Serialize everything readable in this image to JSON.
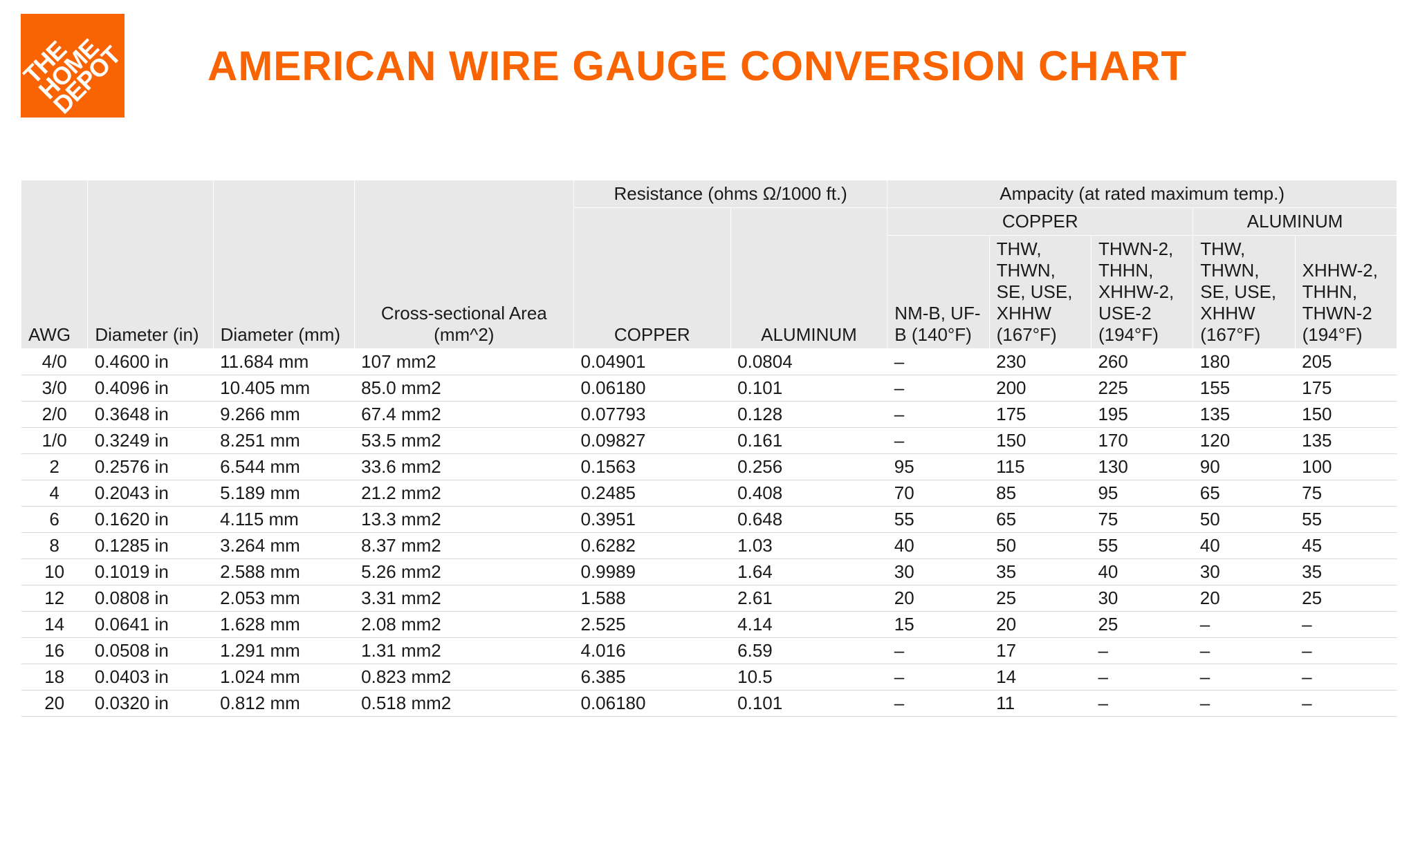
{
  "logo": {
    "line1": "THE",
    "line2": "HOME",
    "line3": "DEPOT"
  },
  "title": "AMERICAN WIRE GAUGE CONVERSION CHART",
  "colors": {
    "brand": "#f96302",
    "header_bg": "#e8e8e8",
    "row_border": "#d8d8d8",
    "text": "#1a1a1a",
    "background": "#ffffff"
  },
  "typography": {
    "title_fontsize": 60,
    "title_weight": 700,
    "body_fontsize": 26
  },
  "table": {
    "type": "table",
    "header_groups": {
      "resistance": "Resistance (ohms Ω/1000 ft.)",
      "ampacity": "Ampacity (at rated maximum temp.)",
      "copper": "COPPER",
      "aluminum": "ALUMINUM"
    },
    "columns": [
      "AWG",
      "Diameter (in)",
      "Diameter (mm)",
      "Cross-sectional Area (mm^2)",
      "COPPER",
      "ALUMINUM",
      "NM-B, UF-B (140°F)",
      "THW, THWN, SE, USE, XHHW (167°F)",
      "THWN-2, THHN, XHHW-2, USE-2 (194°F)",
      "THW, THWN, SE, USE, XHHW (167°F)",
      "XHHW-2, THHN, THWN-2 (194°F)"
    ],
    "rows": [
      [
        "4/0",
        "0.4600 in",
        "11.684 mm",
        "107 mm2",
        "0.04901",
        "0.0804",
        "–",
        "230",
        "260",
        "180",
        "205"
      ],
      [
        "3/0",
        "0.4096 in",
        "10.405 mm",
        "85.0 mm2",
        "0.06180",
        "0.101",
        "–",
        "200",
        "225",
        "155",
        "175"
      ],
      [
        "2/0",
        "0.3648 in",
        "9.266 mm",
        "67.4 mm2",
        "0.07793",
        "0.128",
        "–",
        "175",
        "195",
        "135",
        "150"
      ],
      [
        "1/0",
        "0.3249 in",
        "8.251 mm",
        "53.5 mm2",
        "0.09827",
        "0.161",
        "–",
        "150",
        "170",
        "120",
        "135"
      ],
      [
        "2",
        "0.2576 in",
        "6.544 mm",
        "33.6 mm2",
        "0.1563",
        "0.256",
        "95",
        "115",
        "130",
        "90",
        "100"
      ],
      [
        "4",
        "0.2043 in",
        "5.189 mm",
        "21.2 mm2",
        "0.2485",
        "0.408",
        "70",
        "85",
        "95",
        "65",
        "75"
      ],
      [
        "6",
        "0.1620 in",
        "4.115 mm",
        "13.3 mm2",
        "0.3951",
        "0.648",
        "55",
        "65",
        "75",
        "50",
        "55"
      ],
      [
        "8",
        "0.1285 in",
        "3.264 mm",
        "8.37 mm2",
        "0.6282",
        "1.03",
        "40",
        "50",
        "55",
        "40",
        "45"
      ],
      [
        "10",
        "0.1019 in",
        "2.588 mm",
        "5.26 mm2",
        "0.9989",
        "1.64",
        "30",
        "35",
        "40",
        "30",
        "35"
      ],
      [
        "12",
        "0.0808 in",
        "2.053 mm",
        "3.31 mm2",
        "1.588",
        "2.61",
        "20",
        "25",
        "30",
        "20",
        "25"
      ],
      [
        "14",
        "0.0641 in",
        "1.628 mm",
        "2.08 mm2",
        "2.525",
        "4.14",
        "15",
        "20",
        "25",
        "–",
        "–"
      ],
      [
        "16",
        "0.0508 in",
        "1.291 mm",
        "1.31 mm2",
        "4.016",
        "6.59",
        "–",
        "17",
        "–",
        "–",
        "–"
      ],
      [
        "18",
        "0.0403 in",
        "1.024 mm",
        "0.823 mm2",
        "6.385",
        "10.5",
        "–",
        "14",
        "–",
        "–",
        "–"
      ],
      [
        "20",
        "0.0320 in",
        "0.812 mm",
        "0.518 mm2",
        "0.06180",
        "0.101",
        "–",
        "11",
        "–",
        "–",
        "–"
      ]
    ]
  }
}
